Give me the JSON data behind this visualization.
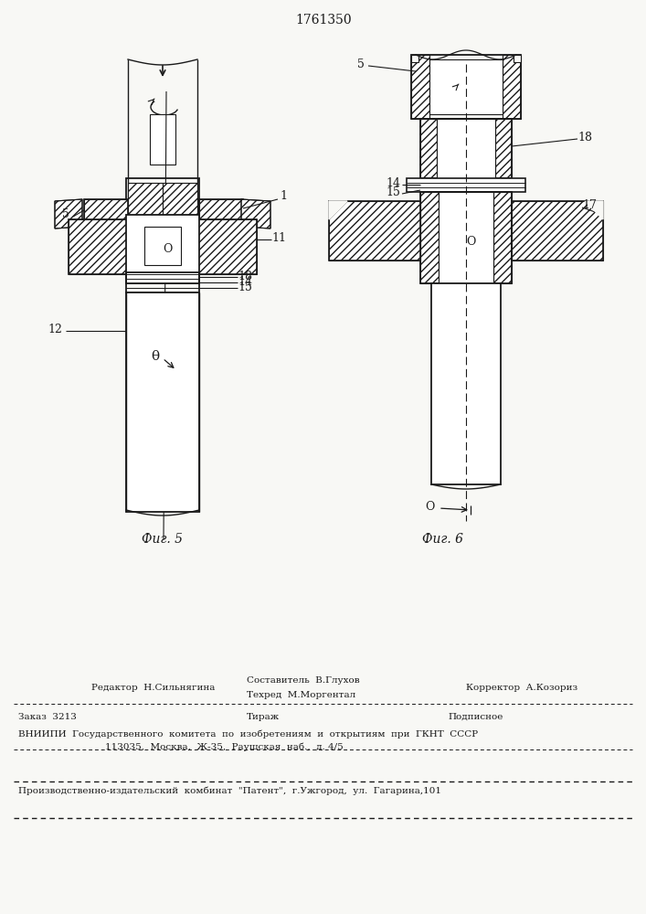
{
  "patent_number": "1761350",
  "bg": "#f8f8f5",
  "lc": "#1a1a1a",
  "fig5_caption": "Фиг. 5",
  "fig6_caption": "Фиг. 6"
}
